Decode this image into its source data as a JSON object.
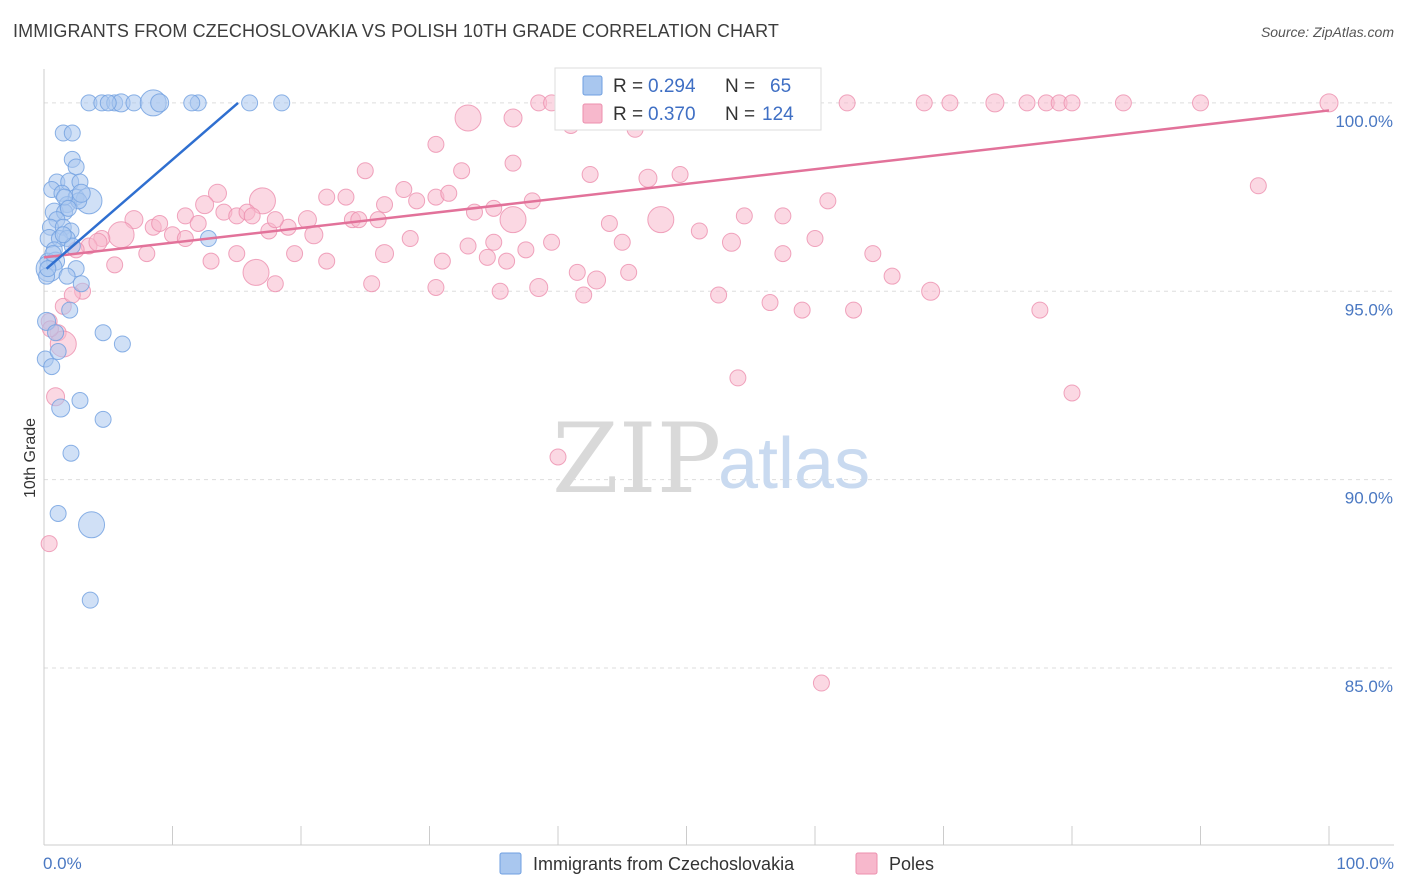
{
  "title": "IMMIGRANTS FROM CZECHOSLOVAKIA VS POLISH 10TH GRADE CORRELATION CHART",
  "source": "Source: ZipAtlas.com",
  "watermark": {
    "zip": "ZIP",
    "atlas": "atlas"
  },
  "colors": {
    "blue_fill": "#a9c7ef",
    "blue_stroke": "#6f9fe0",
    "blue_line": "#2f6fd0",
    "pink_fill": "#f7b8cc",
    "pink_stroke": "#ec8fae",
    "pink_line": "#e2729a",
    "grid": "#dddddd",
    "tick_label": "#4a78c2"
  },
  "legend": {
    "rows": [
      {
        "r_label": "R = ",
        "r_value": "0.294",
        "n_label": "N = ",
        "n_value": "65",
        "series": "blue"
      },
      {
        "r_label": "R = ",
        "r_value": "0.370",
        "n_label": "N = ",
        "n_value": "124",
        "series": "pink"
      }
    ]
  },
  "chart_data": {
    "type": "scatter",
    "title": "IMMIGRANTS FROM CZECHOSLOVAKIA VS POLISH 10TH GRADE CORRELATION CHART",
    "xlabel": "",
    "ylabel": "10th Grade",
    "xlim": [
      0,
      100
    ],
    "ylim": [
      80.3,
      100.9
    ],
    "x_tick_labels": [
      "0.0%",
      "100.0%"
    ],
    "y_ticks": [
      {
        "value": 100,
        "label": "100.0%"
      },
      {
        "value": 95,
        "label": "95.0%"
      },
      {
        "value": 90,
        "label": "90.0%"
      },
      {
        "value": 85,
        "label": "85.0%"
      }
    ],
    "series": [
      {
        "name": "Immigrants from Czechoslovakia",
        "color": "blue",
        "R": 0.294,
        "N": 65,
        "trend": {
          "x": [
            0.2,
            15.1
          ],
          "y": [
            95.6,
            100.0
          ]
        },
        "points": [
          [
            3.5,
            100
          ],
          [
            4.5,
            100
          ],
          [
            5.5,
            100
          ],
          [
            6,
            100
          ],
          [
            7,
            100
          ],
          [
            8.5,
            100
          ],
          [
            12,
            100
          ],
          [
            16,
            100
          ],
          [
            18.5,
            100
          ],
          [
            5,
            100
          ],
          [
            9,
            100
          ],
          [
            11.5,
            100
          ],
          [
            1.5,
            99.2
          ],
          [
            2.2,
            99.2
          ],
          [
            2.2,
            98.5
          ],
          [
            2.5,
            98.3
          ],
          [
            1,
            97.9
          ],
          [
            2,
            97.9
          ],
          [
            2.8,
            97.9
          ],
          [
            0.6,
            97.7
          ],
          [
            1.4,
            97.6
          ],
          [
            2.5,
            97.5
          ],
          [
            3.5,
            97.4
          ],
          [
            1.8,
            97.3
          ],
          [
            0.8,
            97.1
          ],
          [
            1.6,
            97.1
          ],
          [
            2.7,
            97.4
          ],
          [
            1,
            96.9
          ],
          [
            0.5,
            96.7
          ],
          [
            1.5,
            96.7
          ],
          [
            2.1,
            96.6
          ],
          [
            0.4,
            96.4
          ],
          [
            1.2,
            96.4
          ],
          [
            1.8,
            96.4
          ],
          [
            12.8,
            96.4
          ],
          [
            0.8,
            96.1
          ],
          [
            2.2,
            96.2
          ],
          [
            0.3,
            95.8
          ],
          [
            0.9,
            95.8
          ],
          [
            0.4,
            95.6
          ],
          [
            2.5,
            95.6
          ],
          [
            1.8,
            95.4
          ],
          [
            0.2,
            95.4
          ],
          [
            2.9,
            95.2
          ],
          [
            2,
            94.5
          ],
          [
            0.2,
            94.2
          ],
          [
            0.9,
            93.9
          ],
          [
            4.6,
            93.9
          ],
          [
            6.1,
            93.6
          ],
          [
            0.1,
            93.2
          ],
          [
            1.1,
            93.4
          ],
          [
            2.8,
            92.1
          ],
          [
            1.3,
            91.9
          ],
          [
            4.6,
            91.6
          ],
          [
            2.1,
            90.7
          ],
          [
            1.1,
            89.1
          ],
          [
            3.7,
            88.8
          ],
          [
            3.6,
            86.8
          ],
          [
            1.6,
            97.5
          ],
          [
            2.9,
            97.6
          ],
          [
            0.7,
            96
          ],
          [
            1.5,
            96.5
          ],
          [
            0.3,
            95.6
          ],
          [
            1.9,
            97.2
          ],
          [
            0.6,
            93.0
          ]
        ]
      },
      {
        "name": "Poles",
        "color": "pink",
        "R": 0.37,
        "N": 124,
        "trend": {
          "x": [
            0,
            100
          ],
          "y": [
            95.9,
            99.8
          ]
        },
        "points": [
          [
            38.5,
            100
          ],
          [
            39.5,
            100
          ],
          [
            43.5,
            100
          ],
          [
            44.5,
            100
          ],
          [
            47.5,
            100
          ],
          [
            48.5,
            100
          ],
          [
            55,
            100
          ],
          [
            62.5,
            100
          ],
          [
            68.5,
            100
          ],
          [
            70.5,
            100
          ],
          [
            74,
            100
          ],
          [
            76.5,
            100
          ],
          [
            78,
            100
          ],
          [
            79,
            100
          ],
          [
            80,
            100
          ],
          [
            84,
            100
          ],
          [
            90,
            100
          ],
          [
            100,
            100
          ],
          [
            41,
            99.4
          ],
          [
            42.5,
            99.6
          ],
          [
            52.5,
            99.6
          ],
          [
            57,
            99.5
          ],
          [
            33,
            99.6
          ],
          [
            45,
            99.5
          ],
          [
            36.5,
            99.6
          ],
          [
            46,
            99.3
          ],
          [
            30.5,
            98.9
          ],
          [
            36.5,
            98.4
          ],
          [
            32.5,
            98.2
          ],
          [
            25,
            98.2
          ],
          [
            42.5,
            98.1
          ],
          [
            47,
            98.0
          ],
          [
            49.5,
            98.1
          ],
          [
            94.5,
            97.8
          ],
          [
            28,
            97.7
          ],
          [
            30.5,
            97.5
          ],
          [
            38,
            97.4
          ],
          [
            26.5,
            97.3
          ],
          [
            13.5,
            97.6
          ],
          [
            17,
            97.4
          ],
          [
            22,
            97.5
          ],
          [
            23.5,
            97.5
          ],
          [
            29,
            97.4
          ],
          [
            31.5,
            97.6
          ],
          [
            35,
            97.2
          ],
          [
            12.5,
            97.3
          ],
          [
            11,
            97.0
          ],
          [
            14,
            97.1
          ],
          [
            15,
            97.0
          ],
          [
            15.8,
            97.1
          ],
          [
            16.2,
            97.0
          ],
          [
            19,
            96.7
          ],
          [
            20.5,
            96.9
          ],
          [
            24,
            96.9
          ],
          [
            26,
            96.9
          ],
          [
            33.5,
            97.1
          ],
          [
            36.5,
            96.9
          ],
          [
            61,
            97.4
          ],
          [
            57.5,
            97.0
          ],
          [
            7,
            96.9
          ],
          [
            8.5,
            96.7
          ],
          [
            9,
            96.8
          ],
          [
            10,
            96.5
          ],
          [
            12,
            96.8
          ],
          [
            17.5,
            96.6
          ],
          [
            18,
            96.9
          ],
          [
            21,
            96.5
          ],
          [
            28.5,
            96.4
          ],
          [
            33,
            96.2
          ],
          [
            37.5,
            96.1
          ],
          [
            35,
            96.3
          ],
          [
            39.5,
            96.3
          ],
          [
            45,
            96.3
          ],
          [
            6,
            96.5
          ],
          [
            4.5,
            96.4
          ],
          [
            3.5,
            96.2
          ],
          [
            2.5,
            96.1
          ],
          [
            15,
            96.0
          ],
          [
            19.5,
            96
          ],
          [
            22,
            95.8
          ],
          [
            26.5,
            96.0
          ],
          [
            31,
            95.8
          ],
          [
            34.5,
            95.9
          ],
          [
            36,
            95.8
          ],
          [
            41.5,
            95.5
          ],
          [
            45.5,
            95.5
          ],
          [
            51,
            96.6
          ],
          [
            53.5,
            96.3
          ],
          [
            57.5,
            96.0
          ],
          [
            64.5,
            96.0
          ],
          [
            16.5,
            95.5
          ],
          [
            25.5,
            95.2
          ],
          [
            30.5,
            95.1
          ],
          [
            35.5,
            95.0
          ],
          [
            43,
            95.3
          ],
          [
            52.5,
            94.9
          ],
          [
            56.5,
            94.7
          ],
          [
            59,
            94.5
          ],
          [
            63,
            94.5
          ],
          [
            77.5,
            94.5
          ],
          [
            66,
            95.4
          ],
          [
            69,
            95.0
          ],
          [
            5.5,
            95.7
          ],
          [
            3,
            95.0
          ],
          [
            1.5,
            94.6
          ],
          [
            0.4,
            94.2
          ],
          [
            1.1,
            93.9
          ],
          [
            1.5,
            93.6
          ],
          [
            0.9,
            92.2
          ],
          [
            80,
            92.3
          ],
          [
            54,
            92.7
          ],
          [
            40,
            90.6
          ],
          [
            60.5,
            84.6
          ],
          [
            0.4,
            88.3
          ],
          [
            2.2,
            94.9
          ],
          [
            4.2,
            96.3
          ],
          [
            11,
            96.4
          ],
          [
            60,
            96.4
          ],
          [
            8,
            96.0
          ],
          [
            13,
            95.8
          ],
          [
            18,
            95.2
          ],
          [
            24.5,
            96.9
          ],
          [
            38.5,
            95.1
          ],
          [
            44,
            96.8
          ],
          [
            48,
            96.9
          ],
          [
            54.5,
            97.0
          ],
          [
            42,
            94.9
          ],
          [
            0.5,
            94.0
          ]
        ]
      }
    ]
  },
  "bottom_legend": [
    {
      "label": "Immigrants from Czechoslovakia",
      "color": "blue"
    },
    {
      "label": "Poles",
      "color": "pink"
    }
  ]
}
